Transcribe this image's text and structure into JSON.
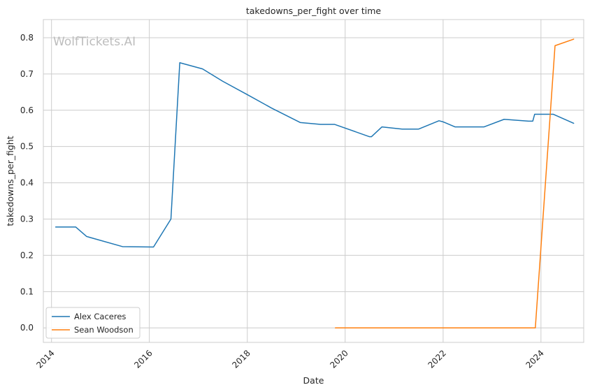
{
  "chart_data": {
    "type": "line",
    "title": "takedowns_per_fight over time",
    "xlabel": "Date",
    "ylabel": "takedowns_per_fight",
    "watermark": "WolfTickets.AI",
    "xlim": [
      "2013-11-01",
      "2024-11-15"
    ],
    "ylim": [
      -0.04,
      0.85
    ],
    "x_ticks": [
      "2014",
      "2016",
      "2018",
      "2020",
      "2022",
      "2024"
    ],
    "y_ticks": [
      "0.0",
      "0.1",
      "0.2",
      "0.3",
      "0.4",
      "0.5",
      "0.6",
      "0.7",
      "0.8"
    ],
    "grid": true,
    "legend_position": "bottom-left",
    "series": [
      {
        "name": "Alex Caceres",
        "color": "#1f77b4",
        "points": [
          [
            "2014-02-01",
            0.278
          ],
          [
            "2014-07-01",
            0.278
          ],
          [
            "2014-09-20",
            0.252
          ],
          [
            "2015-06-15",
            0.224
          ],
          [
            "2016-02-01",
            0.223
          ],
          [
            "2016-06-10",
            0.3
          ],
          [
            "2016-08-15",
            0.731
          ],
          [
            "2017-02-01",
            0.714
          ],
          [
            "2017-07-01",
            0.68
          ],
          [
            "2018-01-01",
            0.643
          ],
          [
            "2018-07-01",
            0.606
          ],
          [
            "2019-02-01",
            0.566
          ],
          [
            "2019-07-01",
            0.561
          ],
          [
            "2019-10-15",
            0.561
          ],
          [
            "2020-07-01",
            0.527
          ],
          [
            "2020-07-15",
            0.527
          ],
          [
            "2020-10-01",
            0.554
          ],
          [
            "2021-03-01",
            0.548
          ],
          [
            "2021-07-01",
            0.548
          ],
          [
            "2021-12-01",
            0.571
          ],
          [
            "2022-01-01",
            0.568
          ],
          [
            "2022-04-01",
            0.554
          ],
          [
            "2022-11-01",
            0.554
          ],
          [
            "2023-04-01",
            0.575
          ],
          [
            "2023-10-01",
            0.57
          ],
          [
            "2023-11-01",
            0.57
          ],
          [
            "2023-11-15",
            0.589
          ],
          [
            "2024-04-01",
            0.589
          ],
          [
            "2024-09-01",
            0.564
          ]
        ]
      },
      {
        "name": "Sean Woodson",
        "color": "#ff7f0e",
        "points": [
          [
            "2019-10-20",
            0.0
          ],
          [
            "2023-11-20",
            0.0
          ],
          [
            "2024-04-15",
            0.778
          ],
          [
            "2024-09-01",
            0.796
          ]
        ]
      }
    ]
  }
}
